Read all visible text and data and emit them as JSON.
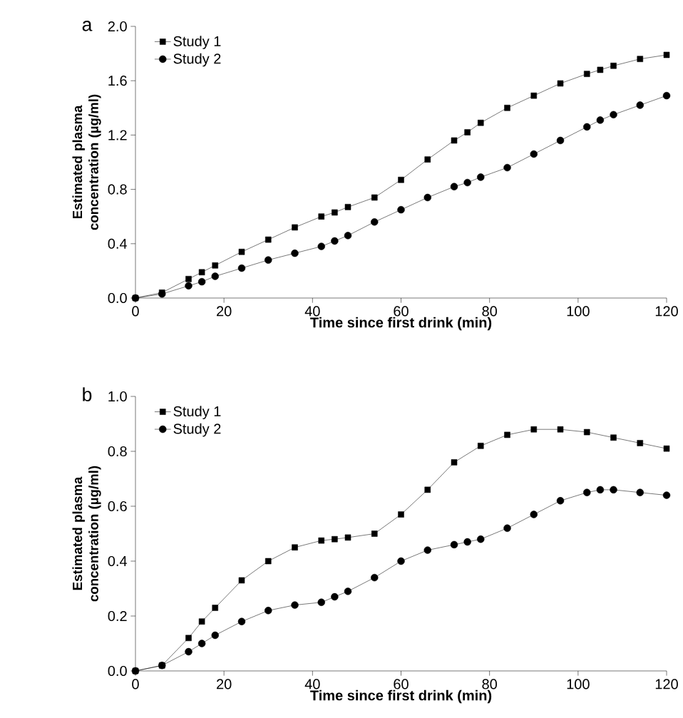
{
  "chart_data": [
    {
      "type": "line",
      "title": "a",
      "xlabel": "Time since first drink (min)",
      "ylabel": "Estimated plasma concentration (µg/ml)",
      "xlim": [
        0,
        120
      ],
      "ylim": [
        0,
        2.0
      ],
      "xticks": [
        0,
        20,
        40,
        60,
        80,
        100,
        120
      ],
      "yticks": [
        {
          "value": 0,
          "label": "0.0"
        },
        {
          "value": 0.4,
          "label": "0.4"
        },
        {
          "value": 0.8,
          "label": "0.8"
        },
        {
          "value": 1.2,
          "label": "1.2"
        },
        {
          "value": 1.6,
          "label": "1.6"
        },
        {
          "value": 2.0,
          "label": "2.0"
        }
      ],
      "grid": false,
      "legend": "top left",
      "line_style": "solid",
      "series": [
        {
          "name": "Study 1",
          "color": "#000000",
          "marker": "square",
          "x": [
            0,
            6,
            12,
            15,
            18,
            24,
            30,
            36,
            42,
            45,
            48,
            54,
            60,
            66,
            72,
            75,
            78,
            84,
            90,
            96,
            102,
            105,
            108,
            114,
            120
          ],
          "values": [
            0,
            0.04,
            0.14,
            0.19,
            0.24,
            0.34,
            0.43,
            0.52,
            0.6,
            0.63,
            0.67,
            0.74,
            0.87,
            1.02,
            1.16,
            1.22,
            1.29,
            1.4,
            1.49,
            1.58,
            1.65,
            1.68,
            1.71,
            1.76,
            1.79
          ]
        },
        {
          "name": "Study 2",
          "color": "#000000",
          "marker": "circle",
          "x": [
            0,
            6,
            12,
            15,
            18,
            24,
            30,
            36,
            42,
            45,
            48,
            54,
            60,
            66,
            72,
            75,
            78,
            84,
            90,
            96,
            102,
            105,
            108,
            114,
            120
          ],
          "values": [
            0,
            0.03,
            0.09,
            0.12,
            0.16,
            0.22,
            0.28,
            0.33,
            0.38,
            0.42,
            0.46,
            0.56,
            0.65,
            0.74,
            0.82,
            0.85,
            0.89,
            0.96,
            1.06,
            1.16,
            1.26,
            1.31,
            1.35,
            1.42,
            1.49
          ]
        }
      ]
    },
    {
      "type": "line",
      "title": "b",
      "xlabel": "Time since first drink (min)",
      "ylabel": "Estimated plasma concentration (µg/ml)",
      "xlim": [
        0,
        120
      ],
      "ylim": [
        0,
        1.0
      ],
      "xticks": [
        0,
        20,
        40,
        60,
        80,
        100,
        120
      ],
      "yticks": [
        {
          "value": 0,
          "label": "0.0"
        },
        {
          "value": 0.2,
          "label": "0.2"
        },
        {
          "value": 0.4,
          "label": "0.4"
        },
        {
          "value": 0.6,
          "label": "0.6"
        },
        {
          "value": 0.8,
          "label": "0.8"
        },
        {
          "value": 1.0,
          "label": "1.0"
        }
      ],
      "grid": false,
      "legend": "top left",
      "line_style": "solid",
      "series": [
        {
          "name": "Study 1",
          "color": "#000000",
          "marker": "square",
          "x": [
            0,
            6,
            12,
            15,
            18,
            24,
            30,
            36,
            42,
            45,
            48,
            54,
            60,
            66,
            72,
            78,
            84,
            90,
            96,
            102,
            108,
            114,
            120
          ],
          "values": [
            0,
            0.02,
            0.12,
            0.18,
            0.23,
            0.33,
            0.4,
            0.45,
            0.475,
            0.48,
            0.486,
            0.5,
            0.57,
            0.66,
            0.76,
            0.82,
            0.86,
            0.88,
            0.88,
            0.87,
            0.85,
            0.83,
            0.81
          ]
        },
        {
          "name": "Study 2",
          "color": "#000000",
          "marker": "circle",
          "x": [
            0,
            6,
            12,
            15,
            18,
            24,
            30,
            36,
            42,
            45,
            48,
            54,
            60,
            66,
            72,
            75,
            78,
            84,
            90,
            96,
            102,
            105,
            108,
            114,
            120
          ],
          "values": [
            0,
            0.02,
            0.07,
            0.1,
            0.13,
            0.18,
            0.22,
            0.24,
            0.25,
            0.27,
            0.29,
            0.34,
            0.4,
            0.44,
            0.46,
            0.47,
            0.48,
            0.52,
            0.57,
            0.62,
            0.65,
            0.66,
            0.66,
            0.65,
            0.64
          ]
        }
      ]
    }
  ]
}
